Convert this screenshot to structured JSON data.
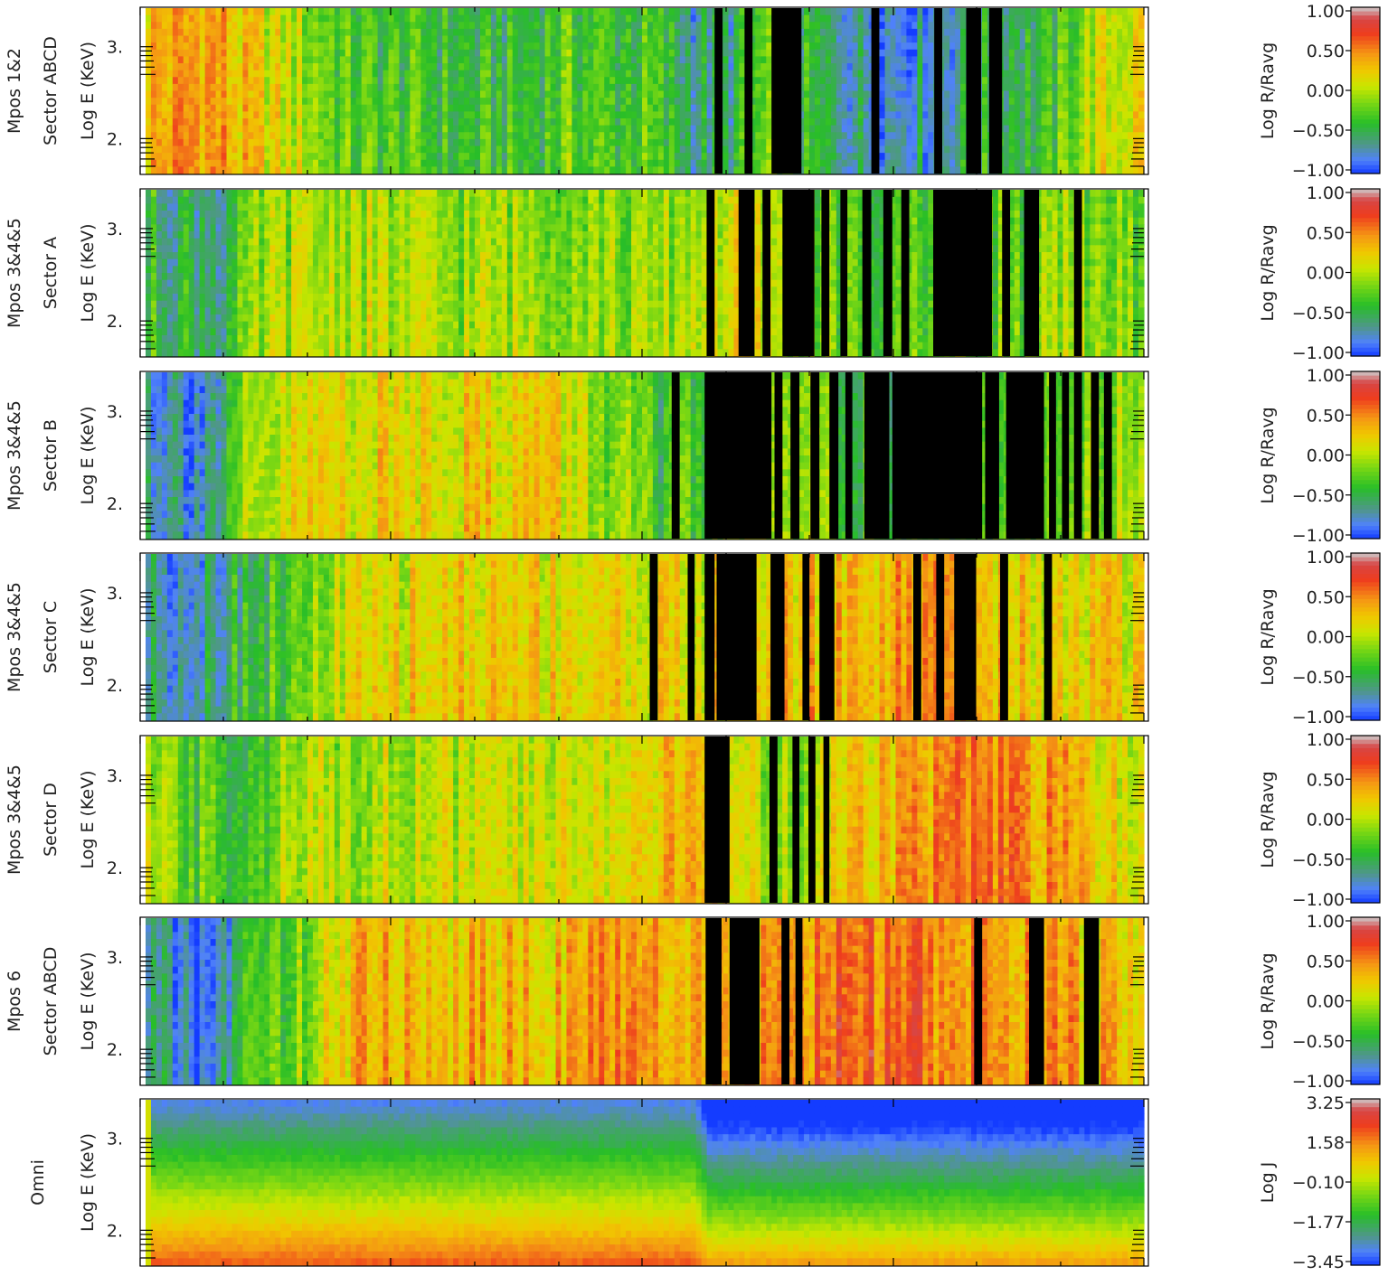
{
  "chart_data": {
    "type": "heatmap",
    "x_tick_labels": [],
    "panels": [
      {
        "id": "mpos12-abcd",
        "row_labels": [
          "Mpos 1&2",
          "Sector ABCD"
        ],
        "ylabel": "Log E (KeV)",
        "y_ticks": [
          "2.",
          "3."
        ],
        "colorbar_label": "Log R/Ravg",
        "colorbar_ticks": [
          "1.00",
          "0.50",
          "0.00",
          "−0.50",
          "−1.00"
        ],
        "range": [
          -1.0,
          1.0
        ],
        "profile": [
          [
            0.0,
            0.3
          ],
          [
            0.04,
            0.4
          ],
          [
            0.07,
            0.4
          ],
          [
            0.1,
            0.2
          ],
          [
            0.14,
            0.05
          ],
          [
            0.2,
            -0.3
          ],
          [
            0.3,
            -0.4
          ],
          [
            0.38,
            -0.45
          ],
          [
            0.42,
            -0.25
          ],
          [
            0.46,
            -0.35
          ],
          [
            0.5,
            -0.35
          ],
          [
            0.55,
            -0.6
          ],
          [
            0.58,
            -0.6
          ],
          [
            0.62,
            -0.3
          ],
          [
            0.68,
            -0.55
          ],
          [
            0.74,
            -0.7
          ],
          [
            0.78,
            -0.7
          ],
          [
            0.82,
            -0.6
          ],
          [
            0.86,
            -0.4
          ],
          [
            0.9,
            -0.45
          ],
          [
            0.95,
            0.0
          ],
          [
            1.0,
            0.2
          ]
        ],
        "gaps": [
          [
            0.57,
            0.578
          ],
          [
            0.6,
            0.608
          ],
          [
            0.627,
            0.657
          ],
          [
            0.727,
            0.735
          ],
          [
            0.79,
            0.798
          ],
          [
            0.822,
            0.837
          ],
          [
            0.845,
            0.858
          ]
        ]
      },
      {
        "id": "mpos345-a",
        "row_labels": [
          "Mpos 3&4&5",
          "Sector A"
        ],
        "ylabel": "Log E (KeV)",
        "y_ticks": [
          "2.",
          "3."
        ],
        "colorbar_label": "Log R/Ravg",
        "colorbar_ticks": [
          "1.00",
          "0.50",
          "0.00",
          "−0.50",
          "−1.00"
        ],
        "range": [
          -1.0,
          1.0
        ],
        "profile": [
          [
            0.0,
            -0.4
          ],
          [
            0.05,
            -0.5
          ],
          [
            0.08,
            -0.55
          ],
          [
            0.12,
            -0.1
          ],
          [
            0.2,
            0.0
          ],
          [
            0.3,
            -0.1
          ],
          [
            0.4,
            -0.05
          ],
          [
            0.5,
            -0.15
          ],
          [
            0.55,
            0.0
          ],
          [
            0.6,
            0.1
          ],
          [
            0.65,
            -0.1
          ],
          [
            0.72,
            -0.35
          ],
          [
            0.8,
            -0.2
          ],
          [
            0.88,
            -0.2
          ],
          [
            0.95,
            -0.1
          ],
          [
            1.0,
            -0.3
          ]
        ],
        "gaps": [
          [
            0.562,
            0.57
          ],
          [
            0.594,
            0.61
          ],
          [
            0.618,
            0.626
          ],
          [
            0.638,
            0.67
          ],
          [
            0.677,
            0.685
          ],
          [
            0.696,
            0.703
          ],
          [
            0.718,
            0.727
          ],
          [
            0.739,
            0.748
          ],
          [
            0.757,
            0.765
          ],
          [
            0.789,
            0.848
          ],
          [
            0.858,
            0.866
          ],
          [
            0.88,
            0.895
          ],
          [
            0.93,
            0.938
          ]
        ]
      },
      {
        "id": "mpos345-b",
        "row_labels": [
          "Mpos 3&4&5",
          "Sector B"
        ],
        "ylabel": "Log E (KeV)",
        "y_ticks": [
          "2.",
          "3."
        ],
        "colorbar_label": "Log R/Ravg",
        "colorbar_ticks": [
          "1.00",
          "0.50",
          "0.00",
          "−0.50",
          "−1.00"
        ],
        "range": [
          -1.0,
          1.0
        ],
        "profile": [
          [
            0.0,
            -0.6
          ],
          [
            0.05,
            -0.7
          ],
          [
            0.08,
            -0.6
          ],
          [
            0.1,
            -0.2
          ],
          [
            0.15,
            0.1
          ],
          [
            0.2,
            0.15
          ],
          [
            0.25,
            0.15
          ],
          [
            0.3,
            0.2
          ],
          [
            0.35,
            0.2
          ],
          [
            0.4,
            0.2
          ],
          [
            0.45,
            -0.05
          ],
          [
            0.5,
            -0.3
          ],
          [
            0.52,
            -0.5
          ],
          [
            0.56,
            -0.3
          ],
          [
            0.62,
            0.0
          ],
          [
            0.7,
            -0.3
          ],
          [
            0.8,
            -0.4
          ],
          [
            0.9,
            -0.3
          ],
          [
            1.0,
            0.0
          ]
        ],
        "gaps": [
          [
            0.527,
            0.535
          ],
          [
            0.56,
            0.627
          ],
          [
            0.63,
            0.638
          ],
          [
            0.646,
            0.655
          ],
          [
            0.666,
            0.675
          ],
          [
            0.685,
            0.694
          ],
          [
            0.701,
            0.708
          ],
          [
            0.72,
            0.745
          ],
          [
            0.748,
            0.838
          ],
          [
            0.841,
            0.855
          ],
          [
            0.862,
            0.9
          ],
          [
            0.905,
            0.912
          ],
          [
            0.918,
            0.925
          ],
          [
            0.93,
            0.938
          ],
          [
            0.947,
            0.955
          ],
          [
            0.96,
            0.968
          ]
        ]
      },
      {
        "id": "mpos345-c",
        "row_labels": [
          "Mpos 3&4&5",
          "Sector C"
        ],
        "ylabel": "Log E (KeV)",
        "y_ticks": [
          "2.",
          "3."
        ],
        "colorbar_label": "Log R/Ravg",
        "colorbar_ticks": [
          "1.00",
          "0.50",
          "0.00",
          "−0.50",
          "−1.00"
        ],
        "range": [
          -1.0,
          1.0
        ],
        "profile": [
          [
            0.0,
            -0.6
          ],
          [
            0.05,
            -0.65
          ],
          [
            0.1,
            -0.4
          ],
          [
            0.15,
            -0.3
          ],
          [
            0.2,
            0.05
          ],
          [
            0.3,
            0.2
          ],
          [
            0.4,
            0.2
          ],
          [
            0.5,
            0.15
          ],
          [
            0.55,
            0.1
          ],
          [
            0.6,
            0.2
          ],
          [
            0.7,
            0.3
          ],
          [
            0.75,
            0.35
          ],
          [
            0.8,
            0.35
          ],
          [
            0.85,
            0.3
          ],
          [
            0.9,
            0.15
          ],
          [
            0.95,
            0.2
          ],
          [
            1.0,
            0.1
          ]
        ],
        "gaps": [
          [
            0.505,
            0.513
          ],
          [
            0.543,
            0.55
          ],
          [
            0.56,
            0.57
          ],
          [
            0.572,
            0.612
          ],
          [
            0.626,
            0.64
          ],
          [
            0.658,
            0.665
          ],
          [
            0.675,
            0.69
          ],
          [
            0.769,
            0.777
          ],
          [
            0.792,
            0.8
          ],
          [
            0.81,
            0.832
          ],
          [
            0.856,
            0.864
          ],
          [
            0.9,
            0.908
          ]
        ]
      },
      {
        "id": "mpos345-d",
        "row_labels": [
          "Mpos 3&4&5",
          "Sector D"
        ],
        "ylabel": "Log E (KeV)",
        "y_ticks": [
          "2.",
          "3."
        ],
        "colorbar_label": "Log R/Ravg",
        "colorbar_ticks": [
          "1.00",
          "0.50",
          "0.00",
          "−0.50",
          "−1.00"
        ],
        "range": [
          -1.0,
          1.0
        ],
        "profile": [
          [
            0.0,
            -0.1
          ],
          [
            0.05,
            -0.3
          ],
          [
            0.1,
            -0.3
          ],
          [
            0.15,
            -0.1
          ],
          [
            0.2,
            0.0
          ],
          [
            0.3,
            0.0
          ],
          [
            0.4,
            0.05
          ],
          [
            0.5,
            0.2
          ],
          [
            0.55,
            0.3
          ],
          [
            0.6,
            0.05
          ],
          [
            0.65,
            -0.1
          ],
          [
            0.7,
            0.2
          ],
          [
            0.75,
            0.35
          ],
          [
            0.8,
            0.45
          ],
          [
            0.85,
            0.45
          ],
          [
            0.9,
            0.4
          ],
          [
            0.95,
            0.25
          ],
          [
            1.0,
            0.0
          ]
        ],
        "gaps": [
          [
            0.56,
            0.585
          ],
          [
            0.625,
            0.633
          ],
          [
            0.648,
            0.655
          ],
          [
            0.664,
            0.671
          ],
          [
            0.679,
            0.685
          ]
        ]
      },
      {
        "id": "mpos6-abcd",
        "row_labels": [
          "Mpos 6",
          "Sector ABCD"
        ],
        "ylabel": "Log E (KeV)",
        "y_ticks": [
          "2.",
          "3."
        ],
        "colorbar_label": "Log R/Ravg",
        "colorbar_ticks": [
          "1.00",
          "0.50",
          "0.00",
          "−0.50",
          "−1.00"
        ],
        "range": [
          -1.0,
          1.0
        ],
        "profile": [
          [
            0.0,
            -0.6
          ],
          [
            0.04,
            -0.85
          ],
          [
            0.07,
            -0.8
          ],
          [
            0.1,
            -0.4
          ],
          [
            0.15,
            -0.2
          ],
          [
            0.2,
            0.25
          ],
          [
            0.25,
            0.35
          ],
          [
            0.3,
            0.3
          ],
          [
            0.4,
            0.3
          ],
          [
            0.45,
            0.4
          ],
          [
            0.5,
            0.35
          ],
          [
            0.55,
            0.35
          ],
          [
            0.6,
            0.3
          ],
          [
            0.65,
            0.4
          ],
          [
            0.7,
            0.6
          ],
          [
            0.75,
            0.55
          ],
          [
            0.8,
            0.5
          ],
          [
            0.85,
            0.45
          ],
          [
            0.9,
            0.4
          ],
          [
            0.95,
            0.3
          ],
          [
            1.0,
            0.1
          ]
        ],
        "gaps": [
          [
            0.561,
            0.577
          ],
          [
            0.585,
            0.615
          ],
          [
            0.637,
            0.645
          ],
          [
            0.651,
            0.658
          ],
          [
            0.83,
            0.838
          ],
          [
            0.885,
            0.9
          ],
          [
            0.94,
            0.955
          ]
        ]
      },
      {
        "id": "omni",
        "row_labels": [
          "Omni"
        ],
        "ylabel": "Log E (KeV)",
        "y_ticks": [
          "2.",
          "3."
        ],
        "colorbar_label": "Log J",
        "colorbar_ticks": [
          "3.25",
          "1.58",
          "−0.10",
          "−1.77",
          "−3.45"
        ],
        "range": [
          -3.45,
          3.25
        ],
        "energy_range_log_keV": [
          1.62,
          3.42
        ],
        "spectrum": {
          "left_of_x_0.55": {
            "low_E_value": 1.6,
            "slope_per_decade": -2.4
          },
          "right_of_x_0.56": {
            "low_E_value": 1.3,
            "slope_per_decade": -2.9
          }
        }
      }
    ]
  }
}
